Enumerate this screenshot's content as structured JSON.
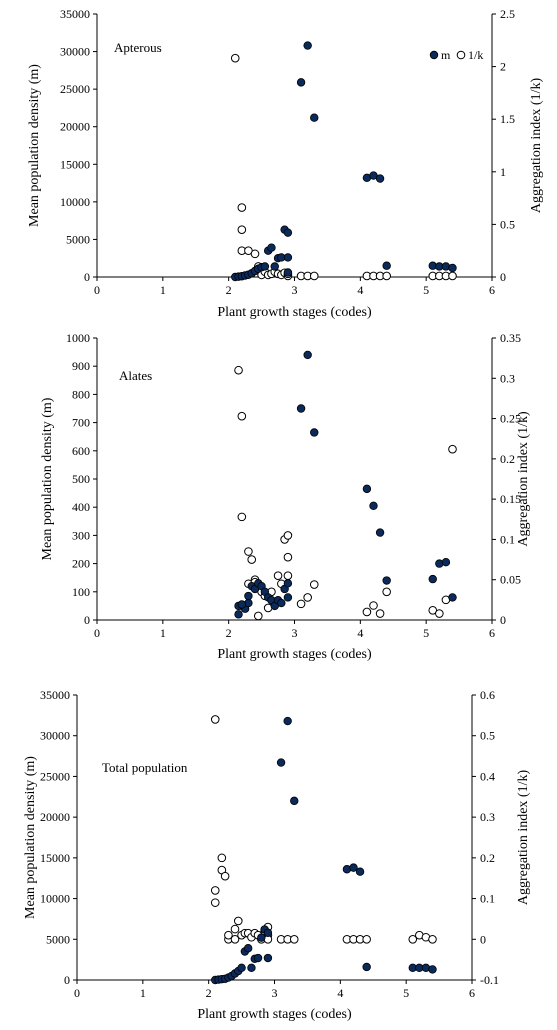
{
  "chart_data": [
    {
      "type": "scatter",
      "title": "Apterous",
      "xlabel": "Plant growth stages (codes)",
      "ylabel": "Mean population density (m)",
      "y2label": "Aggregation index (1/k)",
      "xlim": [
        0,
        6
      ],
      "ylim": [
        0,
        35000
      ],
      "y2lim": [
        0,
        2.5
      ],
      "xticks": [
        "0",
        "1",
        "2",
        "3",
        "4",
        "5",
        "6"
      ],
      "yticks": [
        "0",
        "5000",
        "10000",
        "15000",
        "20000",
        "25000",
        "30000",
        "35000"
      ],
      "y2ticks": [
        "0",
        "0.5",
        "1",
        "1.5",
        "2",
        "2.5"
      ],
      "legend": [
        "m",
        "1/k"
      ],
      "legend_position": "top-right",
      "series": [
        {
          "name": "m",
          "axis": "left",
          "marker": "filled",
          "color": "#0b2a5c",
          "x": [
            2.1,
            2.15,
            2.2,
            2.25,
            2.3,
            2.35,
            2.4,
            2.45,
            2.5,
            2.55,
            2.6,
            2.65,
            2.7,
            2.75,
            2.8,
            2.85,
            2.9,
            2.9,
            2.9,
            3.1,
            3.2,
            3.3,
            4.1,
            4.2,
            4.3,
            4.4,
            5.1,
            5.2,
            5.3,
            5.4
          ],
          "y": [
            0,
            50,
            100,
            200,
            300,
            500,
            800,
            1100,
            1300,
            1400,
            3500,
            3900,
            1400,
            2500,
            2600,
            6300,
            5900,
            2600,
            600,
            25900,
            30800,
            21200,
            13200,
            13500,
            13100,
            1500,
            1500,
            1400,
            1400,
            1200
          ]
        },
        {
          "name": "1/k",
          "axis": "right",
          "marker": "open",
          "color": "#ffffff",
          "x": [
            2.1,
            2.2,
            2.2,
            2.2,
            2.3,
            2.4,
            2.45,
            2.5,
            2.5,
            2.55,
            2.6,
            2.65,
            2.7,
            2.75,
            2.8,
            2.85,
            2.9,
            2.9,
            3.1,
            3.2,
            3.3,
            4.1,
            4.2,
            4.3,
            4.4,
            5.1,
            5.2,
            5.3,
            5.4
          ],
          "y": [
            2.08,
            0.66,
            0.45,
            0.25,
            0.25,
            0.22,
            0.1,
            0.06,
            0.02,
            0.05,
            0.02,
            0.03,
            0.05,
            0.03,
            0.02,
            0.04,
            0.01,
            0.03,
            0.01,
            0.01,
            0.01,
            0.01,
            0.01,
            0.01,
            0.01,
            0.01,
            0.01,
            0.01,
            0.01
          ]
        }
      ]
    },
    {
      "type": "scatter",
      "title": "Alates",
      "xlabel": "Plant growth stages (codes)",
      "ylabel": "Mean population density (m)",
      "y2label": "Aggregation index (1/k)",
      "xlim": [
        0,
        6
      ],
      "ylim": [
        0,
        1000
      ],
      "y2lim": [
        0,
        0.35
      ],
      "xticks": [
        "0",
        "1",
        "2",
        "3",
        "4",
        "5",
        "6"
      ],
      "yticks": [
        "0",
        "100",
        "200",
        "300",
        "400",
        "500",
        "600",
        "700",
        "800",
        "900",
        "1000"
      ],
      "y2ticks": [
        "0",
        "0.05",
        "0.1",
        "0.15",
        "0.2",
        "0.25",
        "0.3",
        "0.35"
      ],
      "series": [
        {
          "name": "m",
          "axis": "left",
          "marker": "filled",
          "color": "#0b2a5c",
          "x": [
            2.15,
            2.2,
            2.25,
            2.3,
            2.35,
            2.4,
            2.45,
            2.5,
            2.55,
            2.6,
            2.65,
            2.7,
            2.75,
            2.8,
            2.85,
            2.9,
            2.9,
            3.1,
            3.2,
            3.3,
            4.1,
            4.2,
            4.3,
            4.4,
            5.1,
            5.2,
            5.3,
            5.4,
            2.15,
            2.2,
            2.3
          ],
          "y": [
            20,
            50,
            40,
            60,
            120,
            110,
            130,
            120,
            100,
            80,
            70,
            50,
            70,
            60,
            110,
            130,
            80,
            750,
            940,
            665,
            465,
            405,
            310,
            140,
            145,
            200,
            205,
            80,
            50,
            55,
            85
          ]
        },
        {
          "name": "1/k",
          "axis": "right",
          "marker": "open",
          "color": "#ffffff",
          "x": [
            2.15,
            2.2,
            2.2,
            2.3,
            2.3,
            2.35,
            2.4,
            2.4,
            2.45,
            2.5,
            2.55,
            2.6,
            2.65,
            2.7,
            2.75,
            2.8,
            2.85,
            2.9,
            2.9,
            2.9,
            3.1,
            3.2,
            3.3,
            4.1,
            4.2,
            4.3,
            4.4,
            5.1,
            5.2,
            5.3,
            5.4
          ],
          "y": [
            0.31,
            0.253,
            0.128,
            0.085,
            0.045,
            0.075,
            0.05,
            0.047,
            0.005,
            0.035,
            0.03,
            0.015,
            0.035,
            0.02,
            0.055,
            0.045,
            0.1,
            0.105,
            0.078,
            0.055,
            0.02,
            0.028,
            0.044,
            0.01,
            0.018,
            0.008,
            0.035,
            0.012,
            0.008,
            0.025,
            0.212
          ]
        }
      ]
    },
    {
      "type": "scatter",
      "title": "Total population",
      "xlabel": "Plant growth stages (codes)",
      "ylabel": "Mean population density (m)",
      "y2label": "Aggregation index (1/k)",
      "xlim": [
        0,
        6
      ],
      "ylim": [
        0,
        35000
      ],
      "y2lim": [
        -0.1,
        0.6
      ],
      "xticks": [
        "0",
        "1",
        "2",
        "3",
        "4",
        "5",
        "6"
      ],
      "yticks": [
        "0",
        "5000",
        "10000",
        "15000",
        "20000",
        "25000",
        "30000",
        "35000"
      ],
      "y2ticks": [
        "-0.1",
        "0",
        "0.1",
        "0.2",
        "0.3",
        "0.4",
        "0.5",
        "0.6"
      ],
      "series": [
        {
          "name": "m",
          "axis": "left",
          "marker": "filled",
          "color": "#0b2a5c",
          "x": [
            2.1,
            2.15,
            2.2,
            2.25,
            2.3,
            2.35,
            2.4,
            2.45,
            2.5,
            2.55,
            2.6,
            2.65,
            2.7,
            2.75,
            2.8,
            2.85,
            2.9,
            2.9,
            3.1,
            3.2,
            3.3,
            4.1,
            4.2,
            4.3,
            4.4,
            5.1,
            5.2,
            5.3,
            5.4
          ],
          "y": [
            0,
            50,
            100,
            150,
            300,
            500,
            800,
            1100,
            1500,
            3500,
            3900,
            1500,
            2600,
            2700,
            5200,
            6200,
            5800,
            2700,
            26700,
            31800,
            22000,
            13600,
            13800,
            13300,
            1600,
            1500,
            1500,
            1500,
            1300
          ]
        },
        {
          "name": "1/k",
          "axis": "right",
          "marker": "open",
          "color": "#ffffff",
          "x": [
            2.1,
            2.1,
            2.1,
            2.2,
            2.2,
            2.25,
            2.3,
            2.3,
            2.4,
            2.4,
            2.45,
            2.5,
            2.55,
            2.6,
            2.65,
            2.7,
            2.75,
            2.8,
            2.85,
            2.9,
            2.9,
            2.9,
            3.1,
            3.2,
            3.3,
            4.1,
            4.2,
            4.3,
            4.4,
            5.1,
            5.2,
            5.3,
            5.4
          ],
          "y": [
            0.54,
            0.12,
            0.09,
            0.2,
            0.17,
            0.155,
            0,
            0.01,
            0.025,
            0,
            0.045,
            0.01,
            0.015,
            0.015,
            0.005,
            0.015,
            0.01,
            0,
            0.02,
            0.03,
            0.01,
            0,
            0,
            0,
            0,
            0,
            0,
            0,
            0,
            0,
            0.01,
            0.005,
            0
          ]
        }
      ]
    }
  ]
}
